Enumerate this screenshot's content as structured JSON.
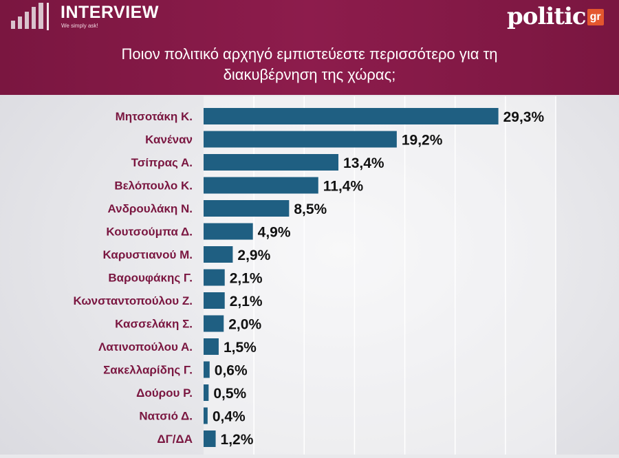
{
  "header": {
    "brand": "INTERVIEW",
    "tagline": "We simply ask!",
    "logo_text": "politic",
    "logo_badge": "gr"
  },
  "chart_data": {
    "type": "bar",
    "orientation": "horizontal",
    "title_lines": [
      "Ποιον πολιτικό αρχηγό εμπιστεύεστε περισσότερο για τη",
      "διακυβέρνηση της χώρας;"
    ],
    "categories": [
      "Μητσοτάκη Κ.",
      "Κανέναν",
      "Τσίπρας Α.",
      "Βελόπουλο Κ.",
      "Ανδρουλάκη Ν.",
      "Κουτσούμπα Δ.",
      "Καρυστιανού Μ.",
      "Βαρουφάκης Γ.",
      "Κωνσταντοπούλου Ζ.",
      "Κασσελάκη Σ.",
      "Λατινοπούλου Α.",
      "Σακελλαρίδης Γ.",
      "Δούρου Ρ.",
      "Νατσιό Δ.",
      "ΔΓ/ΔΑ"
    ],
    "values": [
      29.3,
      19.2,
      13.4,
      11.4,
      8.5,
      4.9,
      2.9,
      2.1,
      2.1,
      2.0,
      1.5,
      0.6,
      0.5,
      0.4,
      1.2
    ],
    "value_labels": [
      "29,3%",
      "19,2%",
      "13,4%",
      "11,4%",
      "8,5%",
      "4,9%",
      "2,9%",
      "2,1%",
      "2,1%",
      "2,0%",
      "1,5%",
      "0,6%",
      "0,5%",
      "0,4%",
      "1,2%"
    ],
    "xlim": [
      0,
      35
    ],
    "grid": true,
    "colors": {
      "bar": "#1f5f82",
      "category_label": "#7a1640",
      "value_label": "#111111",
      "grid": "#ffffff"
    }
  }
}
